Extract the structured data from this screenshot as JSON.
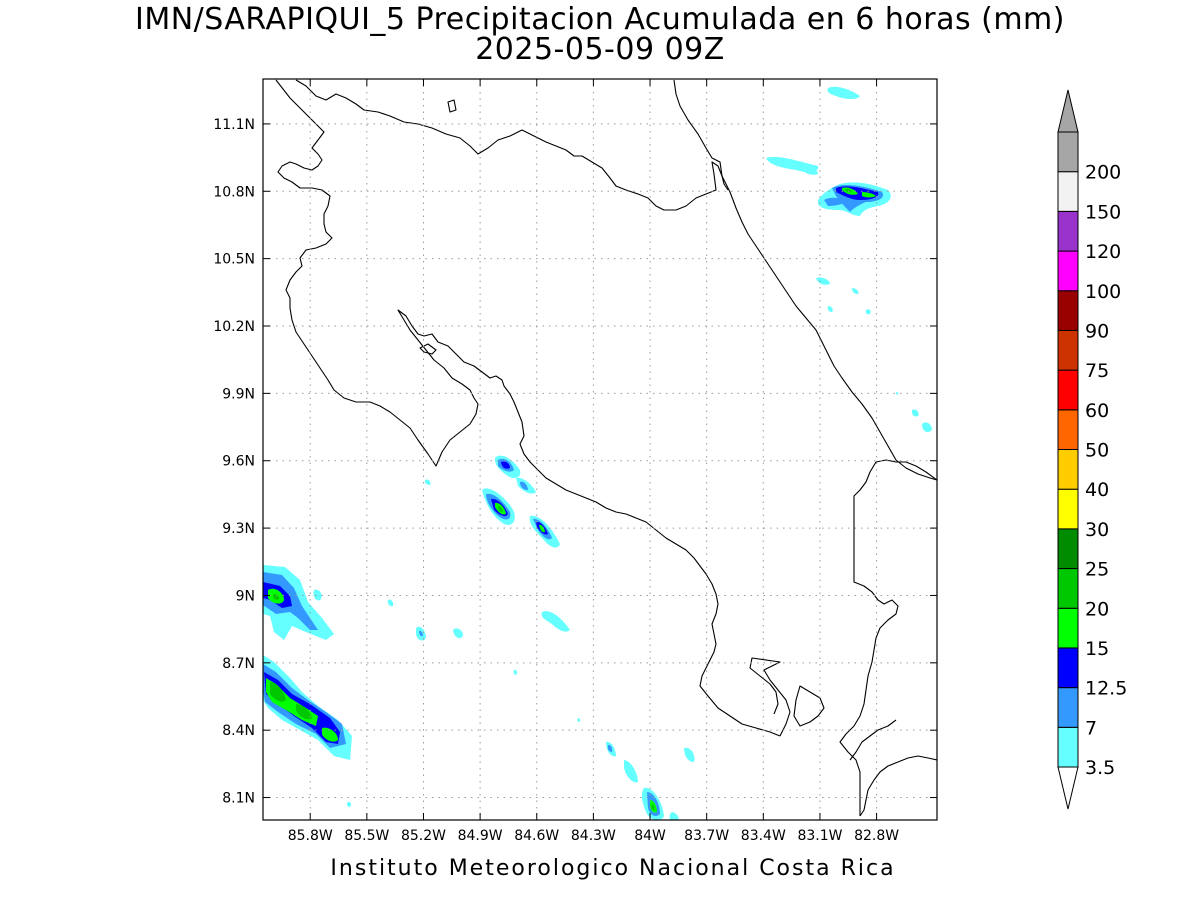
{
  "title_line1": "IMN/SARAPIQUI_5 Precipitacion Acumulada en 6 horas (mm)",
  "title_line2": "2025-05-09 09Z",
  "footer": "Instituto Meteorologico Nacional Costa Rica",
  "map": {
    "lon_range": [
      -86.05,
      -82.48
    ],
    "lat_range": [
      8.0,
      11.3
    ],
    "lat_ticks": [
      {
        "value": 8.1,
        "label": "8.1N"
      },
      {
        "value": 8.4,
        "label": "8.4N"
      },
      {
        "value": 8.7,
        "label": "8.7N"
      },
      {
        "value": 9.0,
        "label": "9N"
      },
      {
        "value": 9.3,
        "label": "9.3N"
      },
      {
        "value": 9.6,
        "label": "9.6N"
      },
      {
        "value": 9.9,
        "label": "9.9N"
      },
      {
        "value": 10.2,
        "label": "10.2N"
      },
      {
        "value": 10.5,
        "label": "10.5N"
      },
      {
        "value": 10.8,
        "label": "10.8N"
      },
      {
        "value": 11.1,
        "label": "11.1N"
      }
    ],
    "lon_ticks": [
      {
        "value": -85.8,
        "label": "85.8W"
      },
      {
        "value": -85.5,
        "label": "85.5W"
      },
      {
        "value": -85.2,
        "label": "85.2W"
      },
      {
        "value": -84.9,
        "label": "84.9W"
      },
      {
        "value": -84.6,
        "label": "84.6W"
      },
      {
        "value": -84.3,
        "label": "84.3W"
      },
      {
        "value": -84.0,
        "label": "84W"
      },
      {
        "value": -83.7,
        "label": "83.7W"
      },
      {
        "value": -83.4,
        "label": "83.4W"
      },
      {
        "value": -83.1,
        "label": "83.1W"
      },
      {
        "value": -82.8,
        "label": "82.8W"
      }
    ],
    "grid": true
  },
  "colorbar": {
    "levels": [
      "3.5",
      "7",
      "12.5",
      "15",
      "20",
      "25",
      "30",
      "40",
      "50",
      "60",
      "75",
      "90",
      "100",
      "120",
      "150",
      "200"
    ],
    "colors": [
      "#66ffff",
      "#3399ff",
      "#0000ff",
      "#00ff00",
      "#00c800",
      "#008c00",
      "#ffff00",
      "#ffcc00",
      "#ff6600",
      "#ff0000",
      "#cc3300",
      "#990000",
      "#ff00ff",
      "#9933cc",
      "#f2f2f2",
      "#a6a6a6"
    ],
    "low_extend_color": "#ffffff",
    "high_extend_color": "#a6a6a6"
  },
  "chart_data": {
    "type": "heatmap",
    "title": "IMN/SARAPIQUI_5 Precipitacion Acumulada en 6 horas (mm)",
    "subtitle": "2025-05-09 09Z",
    "xlim": [
      -86.05,
      -82.48
    ],
    "ylim": [
      8.0,
      11.3
    ],
    "levels": [
      3.5,
      7,
      12.5,
      15,
      20,
      25,
      30,
      40,
      50,
      60,
      75,
      90,
      100,
      120,
      150,
      200
    ],
    "cells": [
      {
        "lon": -85.88,
        "lat": 9.0,
        "max": 20
      },
      {
        "lon": -85.85,
        "lat": 8.55,
        "max": 20
      },
      {
        "lon": -85.72,
        "lat": 8.48,
        "max": 20
      },
      {
        "lon": -85.58,
        "lat": 8.38,
        "max": 20
      },
      {
        "lon": -84.82,
        "lat": 9.38,
        "max": 20
      },
      {
        "lon": -84.78,
        "lat": 9.57,
        "max": 15
      },
      {
        "lon": -84.58,
        "lat": 9.29,
        "max": 20
      },
      {
        "lon": -83.99,
        "lat": 8.06,
        "max": 20
      },
      {
        "lon": -82.93,
        "lat": 10.8,
        "max": 20
      },
      {
        "lon": -82.85,
        "lat": 10.78,
        "max": 15
      }
    ]
  }
}
